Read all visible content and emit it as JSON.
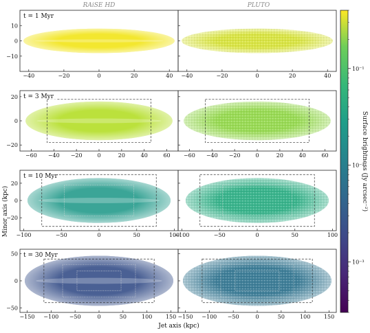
{
  "columns": [
    "RAiSE HD",
    "PLUTO"
  ],
  "axes": {
    "xlabel": "Jet axis (kpc)",
    "ylabel": "Minor axis (kpc)"
  },
  "colorbar": {
    "label": "Surface brightness (Jy arcsec⁻²)",
    "scale": "log",
    "ticks": [
      "10⁻¹",
      "10⁻²",
      "10⁻³"
    ],
    "tick_values": [
      0.1,
      0.01,
      0.001
    ],
    "range": [
      0.0003,
      0.4
    ],
    "colormap": "viridis"
  },
  "chart_data": [
    {
      "type": "heatmap",
      "time_label": "t = 1 Myr",
      "xlim": [
        -45,
        45
      ],
      "ylim": [
        -20,
        20
      ],
      "xticks": [
        -40,
        -20,
        0,
        20,
        40
      ],
      "xtick_labels": [
        "−40",
        "−20",
        "0",
        "20",
        "40"
      ],
      "yticks": [
        10,
        0,
        -10
      ],
      "ytick_labels": [
        "10",
        "0",
        "−10"
      ],
      "source_extent": {
        "half_length": 43,
        "half_width": 8
      },
      "raise_color": "#f2e51d",
      "pluto_color": "#d6e233",
      "dashed_boxes": [],
      "dotted_boxes": []
    },
    {
      "type": "heatmap",
      "time_label": "t = 3 Myr",
      "xlim": [
        -70,
        70
      ],
      "ylim": [
        -25,
        25
      ],
      "xticks": [
        -60,
        -40,
        -20,
        0,
        20,
        40,
        60
      ],
      "xtick_labels": [
        "−60",
        "−40",
        "−20",
        "0",
        "20",
        "40",
        "60"
      ],
      "yticks": [
        20,
        0,
        -20
      ],
      "ytick_labels": [
        "20",
        "0",
        "−20"
      ],
      "source_extent": {
        "half_length": 65,
        "half_width": 16
      },
      "raise_color": "#b5de2b",
      "pluto_color": "#8fd744",
      "dashed_boxes": [
        {
          "x": [
            -46,
            46
          ],
          "y": [
            -18,
            18
          ]
        }
      ],
      "dotted_boxes": []
    },
    {
      "type": "heatmap",
      "time_label": "t = 10 Myr",
      "xlim": [
        -105,
        105
      ],
      "ylim": [
        -35,
        35
      ],
      "xticks": [
        -100,
        -50,
        0,
        50,
        100
      ],
      "xtick_labels": [
        "−100",
        "−50",
        "0",
        "50",
        "100"
      ],
      "yticks": [
        20,
        0,
        -20
      ],
      "ytick_labels": [
        "20",
        "0",
        "−20"
      ],
      "source_extent": {
        "half_length": 95,
        "half_width": 26
      },
      "raise_color": "#2a9d8e",
      "pluto_color": "#27ad81",
      "dashed_boxes": [
        {
          "x": [
            -76,
            76
          ],
          "y": [
            -30,
            30
          ]
        }
      ],
      "dotted_boxes": [
        {
          "x": [
            -46,
            46
          ],
          "y": [
            -18,
            18
          ]
        }
      ]
    },
    {
      "type": "heatmap",
      "time_label": "t = 30 Myr",
      "xlim": [
        -165,
        165
      ],
      "ylim": [
        -58,
        58
      ],
      "xticks": [
        -150,
        -100,
        -50,
        0,
        50,
        100,
        150
      ],
      "xtick_labels": [
        "−150",
        "−100",
        "−50",
        "0",
        "50",
        "100",
        "150"
      ],
      "yticks": [
        50,
        0,
        -50
      ],
      "ytick_labels": [
        "50",
        "0",
        "−50"
      ],
      "source_extent": {
        "half_length": 155,
        "half_width": 46
      },
      "raise_color": "#3b528b",
      "pluto_color": "#2c728e",
      "dashed_boxes": [
        {
          "x": [
            -115,
            115
          ],
          "y": [
            -40,
            40
          ]
        }
      ],
      "dotted_boxes": [
        {
          "x": [
            -76,
            76
          ],
          "y": [
            -30,
            30
          ]
        },
        {
          "x": [
            -46,
            46
          ],
          "y": [
            -18,
            18
          ]
        }
      ]
    }
  ]
}
